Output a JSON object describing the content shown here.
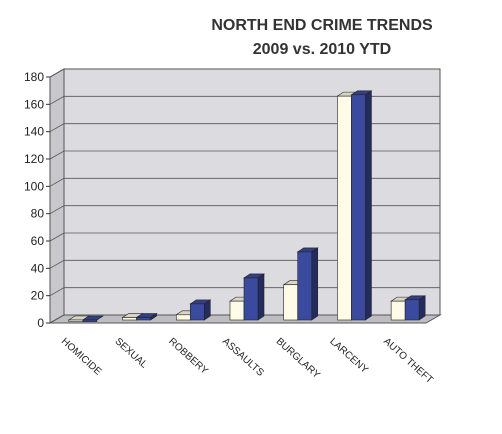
{
  "chart_data": {
    "type": "bar3d",
    "title": "NORTH END CRIME TRENDS",
    "subtitle": "2009 vs. 2010 YTD",
    "categories": [
      "HOMICIDE",
      "SEXUAL",
      "ROBBERY",
      "ASSAULTS",
      "BURGLARY",
      "LARCENY",
      "AUTO THEFT"
    ],
    "series": [
      {
        "color": "#fffbe6",
        "values": [
          1,
          4,
          6,
          16,
          28,
          166,
          16
        ]
      },
      {
        "color": "#3a4a9e",
        "values": [
          1,
          4,
          14,
          33,
          52,
          167,
          17
        ]
      }
    ],
    "ylim": [
      0,
      180
    ],
    "yticks": [
      0,
      20,
      40,
      60,
      80,
      100,
      120,
      140,
      160,
      180
    ],
    "grid": true
  }
}
